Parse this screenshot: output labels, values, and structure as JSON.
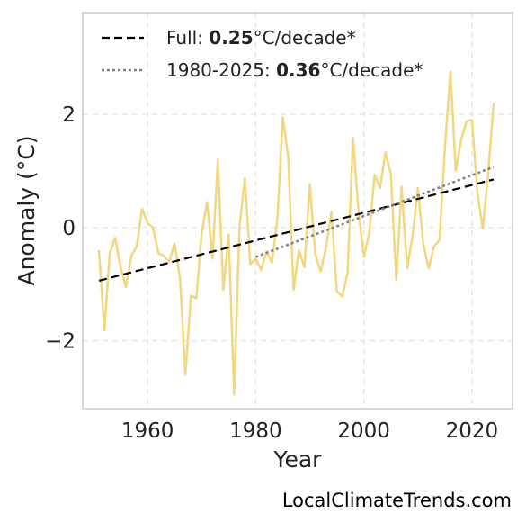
{
  "chart_data": {
    "type": "line",
    "title": "",
    "xlabel": "Year",
    "ylabel": "Anomaly (°C)",
    "xlim": [
      1948,
      2027.5
    ],
    "ylim": [
      -3.2,
      3.8
    ],
    "xticks": [
      1960,
      1980,
      2000,
      2020
    ],
    "xtick_labels": [
      "1960",
      "1980",
      "2000",
      "2020"
    ],
    "yticks": [
      -2,
      0,
      2
    ],
    "ytick_labels": [
      "−2",
      "0",
      "2"
    ],
    "grid": true,
    "legend_position": "top-left",
    "series": [
      {
        "color": "#f2d77e",
        "style": "solid",
        "x": [
          1951,
          1952,
          1953,
          1954,
          1955,
          1956,
          1957,
          1958,
          1959,
          1960,
          1961,
          1962,
          1963,
          1964,
          1965,
          1966,
          1967,
          1968,
          1969,
          1970,
          1971,
          1972,
          1973,
          1974,
          1975,
          1976,
          1977,
          1978,
          1979,
          1980,
          1981,
          1982,
          1983,
          1984,
          1985,
          1986,
          1987,
          1988,
          1989,
          1990,
          1991,
          1992,
          1993,
          1994,
          1995,
          1996,
          1997,
          1998,
          1999,
          2000,
          2001,
          2002,
          2003,
          2004,
          2005,
          2006,
          2007,
          2008,
          2009,
          2010,
          2011,
          2012,
          2013,
          2014,
          2015,
          2016,
          2017,
          2018,
          2019,
          2020,
          2021,
          2022,
          2023,
          2024
        ],
        "y": [
          -0.4,
          -1.82,
          -0.45,
          -0.18,
          -0.7,
          -1.05,
          -0.5,
          -0.33,
          0.33,
          0.08,
          0.0,
          -0.45,
          -0.5,
          -0.6,
          -0.28,
          -0.9,
          -2.6,
          -1.2,
          -1.25,
          -0.1,
          0.45,
          -0.55,
          1.2,
          -1.1,
          -0.12,
          -2.95,
          0.02,
          0.87,
          -0.65,
          -0.55,
          -0.75,
          -0.42,
          -0.62,
          0.15,
          1.95,
          1.25,
          -1.1,
          -0.4,
          -0.7,
          0.77,
          -0.45,
          -0.78,
          -0.35,
          0.28,
          -1.12,
          -1.22,
          -0.8,
          1.58,
          0.3,
          -0.52,
          -0.1,
          0.93,
          0.7,
          1.33,
          0.95,
          -0.92,
          0.72,
          -0.72,
          -0.15,
          0.7,
          -0.3,
          -0.72,
          -0.33,
          -0.22,
          1.4,
          2.75,
          1.0,
          1.55,
          1.88,
          1.9,
          0.62,
          -0.02,
          0.95,
          2.2
        ]
      },
      {
        "name": "Full:",
        "rate": "0.25",
        "unit": "°C/decade*",
        "color": "#000000",
        "style": "dashed",
        "x": [
          1951,
          2024
        ],
        "y": [
          -0.94,
          0.85
        ]
      },
      {
        "name": "1980-2025:",
        "rate": "0.36",
        "unit": "°C/decade*",
        "color": "#808080",
        "style": "dotted",
        "x": [
          1980,
          2024
        ],
        "y": [
          -0.52,
          1.07
        ]
      }
    ]
  },
  "credit": "LocalClimateTrends.com"
}
